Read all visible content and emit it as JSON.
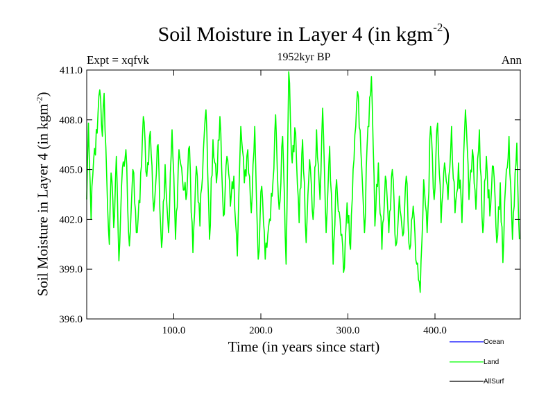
{
  "chart_data": {
    "type": "line",
    "title": "Soil Moisture in Layer 4 (in kgm",
    "title_sup": "-2",
    "title_end": ")",
    "subtitle": "1952kyr BP",
    "expt_label": "Expt = xqfvk",
    "season_label": "Ann",
    "xlabel": "Time (in years since start)",
    "ylabel": "Soil Moisture in Layer 4 (in kgm",
    "ylabel_sup": "-2",
    "ylabel_end": ")",
    "xlim": [
      0,
      498
    ],
    "ylim": [
      396.0,
      411.0
    ],
    "xticks": [
      100,
      200,
      300,
      400
    ],
    "xtick_labels": [
      "100.0",
      "200.0",
      "300.0",
      "400.0"
    ],
    "yticks": [
      396,
      399,
      402,
      405,
      408,
      411
    ],
    "ytick_labels": [
      "396.0",
      "399.0",
      "402.0",
      "405.0",
      "408.0",
      "411.0"
    ],
    "series": [
      {
        "name": "Ocean",
        "color": "#0000ff",
        "values": []
      },
      {
        "name": "Land",
        "color": "#00ff00",
        "anchors": [
          [
            0,
            403.2
          ],
          [
            2,
            407.8
          ],
          [
            5,
            402.0
          ],
          [
            8,
            405.6
          ],
          [
            12,
            407.2
          ],
          [
            15,
            409.8
          ],
          [
            18,
            407.0
          ],
          [
            20,
            409.6
          ],
          [
            23,
            404.5
          ],
          [
            26,
            400.5
          ],
          [
            28,
            404.8
          ],
          [
            31,
            401.5
          ],
          [
            34,
            405.8
          ],
          [
            37,
            399.5
          ],
          [
            40,
            404.0
          ],
          [
            45,
            406.2
          ],
          [
            49,
            400.4
          ],
          [
            53,
            405.0
          ],
          [
            57,
            401.2
          ],
          [
            61,
            403.0
          ],
          [
            65,
            408.2
          ],
          [
            69,
            404.6
          ],
          [
            73,
            407.3
          ],
          [
            77,
            402.5
          ],
          [
            82,
            406.5
          ],
          [
            86,
            400.3
          ],
          [
            90,
            405.3
          ],
          [
            94,
            401.2
          ],
          [
            98,
            407.4
          ],
          [
            102,
            400.8
          ],
          [
            106,
            406.2
          ],
          [
            110,
            404.4
          ],
          [
            114,
            403.2
          ],
          [
            118,
            406.4
          ],
          [
            122,
            400.0
          ],
          [
            126,
            405.2
          ],
          [
            130,
            401.6
          ],
          [
            134,
            406.2
          ],
          [
            137,
            408.6
          ],
          [
            141,
            400.8
          ],
          [
            145,
            406.8
          ],
          [
            149,
            404.2
          ],
          [
            153,
            408.2
          ],
          [
            157,
            402.2
          ],
          [
            161,
            405.8
          ],
          [
            165,
            402.8
          ],
          [
            169,
            404.6
          ],
          [
            173,
            399.8
          ],
          [
            177,
            407.6
          ],
          [
            181,
            404.2
          ],
          [
            185,
            406.2
          ],
          [
            189,
            402.4
          ],
          [
            193,
            407.6
          ],
          [
            197,
            399.6
          ],
          [
            201,
            404.0
          ],
          [
            205,
            399.6
          ],
          [
            209,
            401.6
          ],
          [
            213,
            403.4
          ],
          [
            217,
            408.3
          ],
          [
            221,
            402.6
          ],
          [
            225,
            407.0
          ],
          [
            229,
            399.3
          ],
          [
            232,
            410.9
          ],
          [
            236,
            405.4
          ],
          [
            240,
            407.2
          ],
          [
            244,
            401.8
          ],
          [
            248,
            406.8
          ],
          [
            252,
            400.6
          ],
          [
            256,
            405.6
          ],
          [
            260,
            402.0
          ],
          [
            264,
            407.4
          ],
          [
            268,
            403.2
          ],
          [
            271,
            408.7
          ],
          [
            275,
            401.2
          ],
          [
            279,
            406.4
          ],
          [
            283,
            399.3
          ],
          [
            287,
            404.4
          ],
          [
            291,
            402.0
          ],
          [
            295,
            398.8
          ],
          [
            299,
            403.0
          ],
          [
            303,
            400.2
          ],
          [
            307,
            405.6
          ],
          [
            311,
            409.7
          ],
          [
            315,
            406.0
          ],
          [
            319,
            401.2
          ],
          [
            323,
            407.6
          ],
          [
            327,
            410.6
          ],
          [
            331,
            401.6
          ],
          [
            335,
            405.4
          ],
          [
            339,
            400.2
          ],
          [
            343,
            404.6
          ],
          [
            347,
            401.2
          ],
          [
            351,
            405.0
          ],
          [
            355,
            400.4
          ],
          [
            359,
            403.4
          ],
          [
            363,
            401.0
          ],
          [
            367,
            404.6
          ],
          [
            371,
            400.2
          ],
          [
            375,
            402.8
          ],
          [
            379,
            399.3
          ],
          [
            383,
            397.6
          ],
          [
            387,
            404.4
          ],
          [
            391,
            401.2
          ],
          [
            395,
            407.6
          ],
          [
            399,
            403.2
          ],
          [
            403,
            407.8
          ],
          [
            407,
            401.8
          ],
          [
            411,
            405.4
          ],
          [
            415,
            403.2
          ],
          [
            419,
            407.6
          ],
          [
            423,
            402.4
          ],
          [
            427,
            405.4
          ],
          [
            431,
            401.8
          ],
          [
            435,
            408.6
          ],
          [
            439,
            403.2
          ],
          [
            443,
            406.2
          ],
          [
            447,
            402.6
          ],
          [
            451,
            407.4
          ],
          [
            455,
            401.2
          ],
          [
            459,
            405.8
          ],
          [
            463,
            402.2
          ],
          [
            467,
            405.2
          ],
          [
            471,
            400.6
          ],
          [
            475,
            404.2
          ],
          [
            478,
            399.4
          ],
          [
            481,
            404.0
          ],
          [
            485,
            407.0
          ],
          [
            489,
            400.8
          ],
          [
            492,
            404.8
          ],
          [
            494,
            406.6
          ],
          [
            497,
            400.8
          ]
        ]
      },
      {
        "name": "AllSurf",
        "color": "#000000",
        "values": []
      }
    ]
  }
}
